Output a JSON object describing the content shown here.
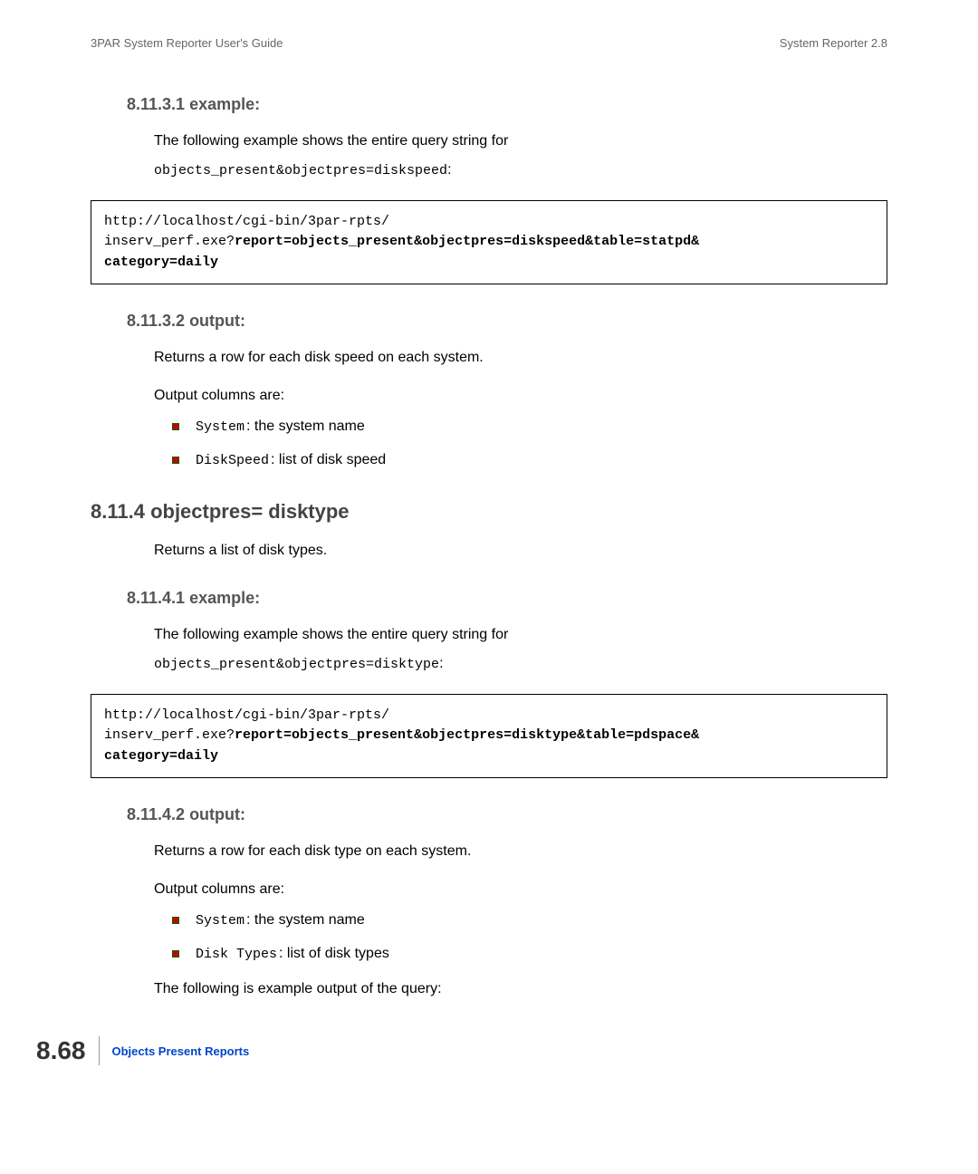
{
  "header": {
    "left": "3PAR System Reporter User's Guide",
    "right": "System Reporter 2.8"
  },
  "section_81131": {
    "heading": "8.11.3.1 example:",
    "intro": "The following example shows the entire query string for",
    "intro_code": "objects_present&objectpres=diskspeed",
    "codebox_line1": "http://localhost/cgi-bin/3par-rpts/",
    "codebox_line2_plain": "inserv_perf.exe?",
    "codebox_line2_bold": "report=objects_present&objectpres=diskspeed&table=statpd&",
    "codebox_line3_bold": "category=daily"
  },
  "section_81132": {
    "heading": "8.11.3.2 output:",
    "p1": "Returns a row for each disk speed on each system.",
    "p2": "Output columns are:",
    "items": [
      {
        "code": "System",
        "text": ": the system name"
      },
      {
        "code": "DiskSpeed",
        "text": ": list of disk speed"
      }
    ]
  },
  "section_8114": {
    "heading": "8.11.4 objectpres= disktype",
    "p1": "Returns a list of disk types."
  },
  "section_81141": {
    "heading": "8.11.4.1 example:",
    "intro": "The following example shows the entire query string for",
    "intro_code": "objects_present&objectpres=disktype",
    "codebox_line1": "http://localhost/cgi-bin/3par-rpts/",
    "codebox_line2_plain": "inserv_perf.exe?",
    "codebox_line2_bold": "report=objects_present&objectpres=disktype&table=pdspace&",
    "codebox_line3_bold": "category=daily"
  },
  "section_81142": {
    "heading": "8.11.4.2 output:",
    "p1": "Returns a row for each disk type on each system.",
    "p2": "Output columns are:",
    "items": [
      {
        "code": "System",
        "text": ": the system name"
      },
      {
        "code": "Disk Types",
        "text": ": list of disk types"
      }
    ],
    "p3": "The following is example output of the query:"
  },
  "footer": {
    "page_number": "8.68",
    "title": "Objects Present Reports"
  },
  "colors": {
    "heading_gray": "#555555",
    "body_black": "#000000",
    "bullet_red": "#cc0000",
    "bullet_border_green": "#006600",
    "footer_blue": "#0044cc",
    "header_gray": "#666666"
  },
  "typography": {
    "body_fontsize": 16,
    "h3_fontsize": 18,
    "h2_fontsize": 22,
    "code_fontsize": 15,
    "header_fontsize": 13,
    "pagenum_fontsize": 28
  }
}
